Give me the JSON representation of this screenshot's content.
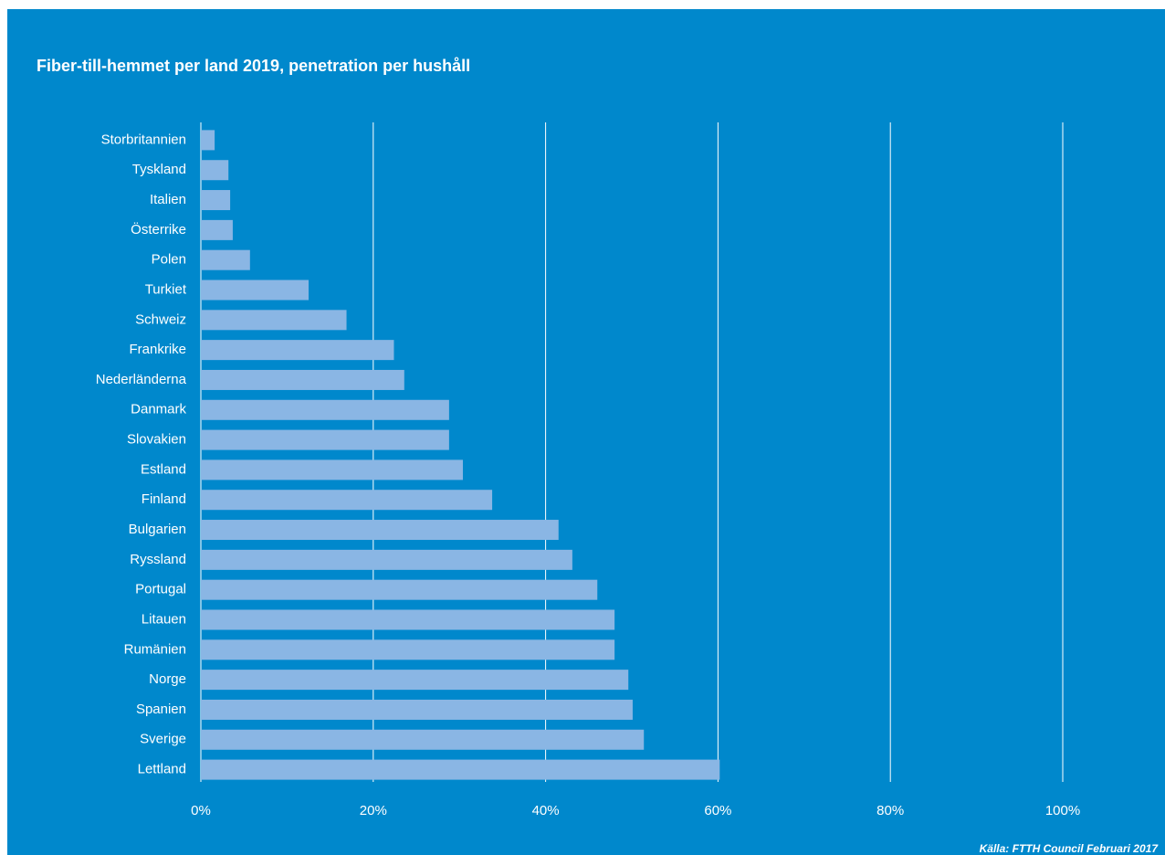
{
  "chart_data": {
    "type": "bar",
    "orientation": "horizontal",
    "title": "Fiber-till-hemmet per land 2019, penetration per hushåll",
    "source": "Källa: FTTH Council Februari 2017",
    "categories": [
      "Storbritannien",
      "Tyskland",
      "Italien",
      "Österrike",
      "Polen",
      "Turkiet",
      "Schweiz",
      "Frankrike",
      "Nederländerna",
      "Danmark",
      "Slovakien",
      "Estland",
      "Finland",
      "Bulgarien",
      "Ryssland",
      "Portugal",
      "Litauen",
      "Rumänien",
      "Norge",
      "Spanien",
      "Sverige",
      "Lettland"
    ],
    "values": [
      1.6,
      3.2,
      3.4,
      3.7,
      5.7,
      12.5,
      16.9,
      22.4,
      23.6,
      28.8,
      28.8,
      30.4,
      33.8,
      41.5,
      43.1,
      46.0,
      48.0,
      48.0,
      49.6,
      50.1,
      51.4,
      60.2
    ],
    "color": "#8ab6e4",
    "xlim": [
      0,
      100
    ],
    "xticks": [
      {
        "value": 0,
        "label": "0%"
      },
      {
        "value": 20,
        "label": "20%"
      },
      {
        "value": 40,
        "label": "40%"
      },
      {
        "value": 60,
        "label": "60%"
      },
      {
        "value": 80,
        "label": "80%"
      },
      {
        "value": 100,
        "label": "100%"
      }
    ],
    "grid": true
  }
}
